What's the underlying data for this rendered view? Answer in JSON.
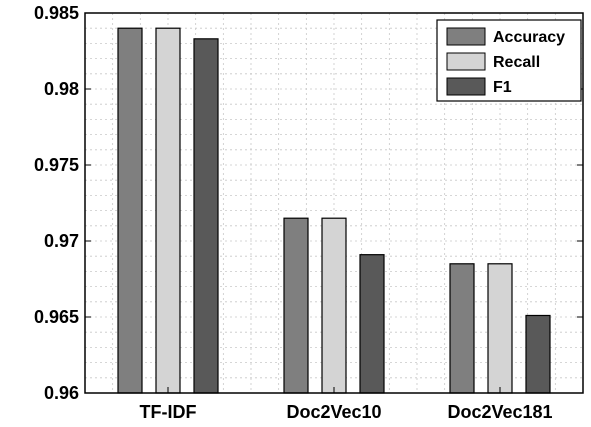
{
  "chart_data": {
    "type": "bar",
    "categories": [
      "TF-IDF",
      "Doc2Vec10",
      "Doc2Vec181"
    ],
    "series": [
      {
        "name": "Accuracy",
        "values": [
          0.984,
          0.9715,
          0.9685
        ],
        "color": "#7f7f7f"
      },
      {
        "name": "Recall",
        "values": [
          0.984,
          0.9715,
          0.9685
        ],
        "color": "#d4d4d4"
      },
      {
        "name": "F1",
        "values": [
          0.9833,
          0.9691,
          0.9651
        ],
        "color": "#595959"
      }
    ],
    "ylim": [
      0.96,
      0.985
    ],
    "yticks": [
      0.96,
      0.965,
      0.97,
      0.975,
      0.98,
      0.985
    ],
    "ytick_labels": [
      "0.96",
      "0.965",
      "0.97",
      "0.975",
      "0.98",
      "0.985"
    ],
    "grid": true,
    "legend_position": "top-right"
  }
}
